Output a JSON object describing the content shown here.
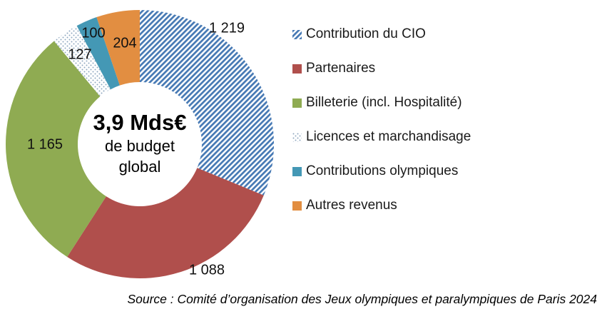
{
  "chart_data": {
    "type": "pie",
    "subtype": "donut",
    "title": "",
    "legend_position": "right",
    "start_angle_deg": 0,
    "clockwise": true,
    "center_label": {
      "line1": "3,9 Mds€",
      "line2": "de budget",
      "line3": "global"
    },
    "segments": [
      {
        "label": "Contribution du CIO",
        "value": 1219,
        "display": "1 219",
        "color": "#4679B4",
        "pattern": "hatch"
      },
      {
        "label": "Partenaires",
        "value": 1088,
        "display": "1 088",
        "color": "#B04F4C",
        "pattern": "solid"
      },
      {
        "label": "Billeterie (incl. Hospitalité)",
        "value": 1165,
        "display": "1 165",
        "color": "#8FAB52",
        "pattern": "solid"
      },
      {
        "label": "Licences et marchandisage",
        "value": 127,
        "display": "127",
        "color": "#8FA8C0",
        "pattern": "dots"
      },
      {
        "label": "Contributions olympiques",
        "value": 100,
        "display": "100",
        "color": "#4498B5",
        "pattern": "solid"
      },
      {
        "label": "Autres revenus",
        "value": 204,
        "display": "204",
        "color": "#E28E41",
        "pattern": "solid"
      }
    ]
  },
  "source": {
    "text": "Source : Comité d’organisation des Jeux olympiques et paralympiques de Paris 2024"
  }
}
